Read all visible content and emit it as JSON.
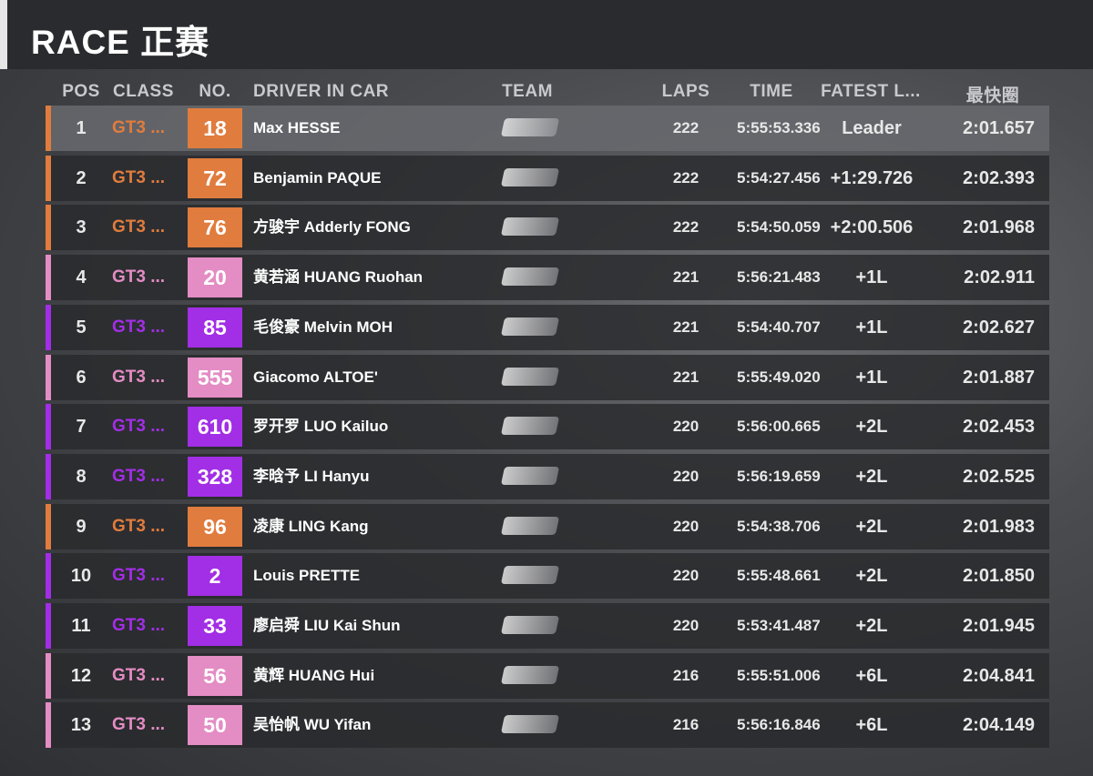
{
  "header": {
    "title": "RACE 正赛"
  },
  "table": {
    "columns": [
      "POS",
      "CLASS",
      "NO.",
      "DRIVER IN CAR",
      "TEAM",
      "LAPS",
      "TIME",
      "FATEST L...",
      "最快圈"
    ],
    "rows": [
      {
        "pos": "1",
        "class": "GT3 ...",
        "no": "18",
        "driver": "Max HESSE",
        "laps": "222",
        "time": "5:55:53.336",
        "gap": "Leader",
        "best": "2:01.657",
        "color": "#e07c3e"
      },
      {
        "pos": "2",
        "class": "GT3 ...",
        "no": "72",
        "driver": "Benjamin PAQUE",
        "laps": "222",
        "time": "5:54:27.456",
        "gap": "+1:29.726",
        "best": "2:02.393",
        "color": "#e07c3e"
      },
      {
        "pos": "3",
        "class": "GT3 ...",
        "no": "76",
        "driver": "方骏宇 Adderly FONG",
        "laps": "222",
        "time": "5:54:50.059",
        "gap": "+2:00.506",
        "best": "2:01.968",
        "color": "#e07c3e"
      },
      {
        "pos": "4",
        "class": "GT3 ...",
        "no": "20",
        "driver": "黄若涵 HUANG Ruohan",
        "laps": "221",
        "time": "5:56:21.483",
        "gap": "+1L",
        "best": "2:02.911",
        "color": "#e48cc4"
      },
      {
        "pos": "5",
        "class": "GT3 ...",
        "no": "85",
        "driver": "毛俊豪 Melvin MOH",
        "laps": "221",
        "time": "5:54:40.707",
        "gap": "+1L",
        "best": "2:02.627",
        "color": "#a22ee6"
      },
      {
        "pos": "6",
        "class": "GT3 ...",
        "no": "555",
        "driver": "Giacomo ALTOE'",
        "laps": "221",
        "time": "5:55:49.020",
        "gap": "+1L",
        "best": "2:01.887",
        "color": "#e48cc4"
      },
      {
        "pos": "7",
        "class": "GT3 ...",
        "no": "610",
        "driver": "罗开罗 LUO Kailuo",
        "laps": "220",
        "time": "5:56:00.665",
        "gap": "+2L",
        "best": "2:02.453",
        "color": "#a22ee6"
      },
      {
        "pos": "8",
        "class": "GT3 ...",
        "no": "328",
        "driver": "李晗予 LI Hanyu",
        "laps": "220",
        "time": "5:56:19.659",
        "gap": "+2L",
        "best": "2:02.525",
        "color": "#a22ee6"
      },
      {
        "pos": "9",
        "class": "GT3 ...",
        "no": "96",
        "driver": "凌康 LING Kang",
        "laps": "220",
        "time": "5:54:38.706",
        "gap": "+2L",
        "best": "2:01.983",
        "color": "#e07c3e"
      },
      {
        "pos": "10",
        "class": "GT3 ...",
        "no": "2",
        "driver": "Louis PRETTE",
        "laps": "220",
        "time": "5:55:48.661",
        "gap": "+2L",
        "best": "2:01.850",
        "color": "#a22ee6"
      },
      {
        "pos": "11",
        "class": "GT3 ...",
        "no": "33",
        "driver": "廖启舜 LIU Kai Shun",
        "laps": "220",
        "time": "5:53:41.487",
        "gap": "+2L",
        "best": "2:01.945",
        "color": "#a22ee6"
      },
      {
        "pos": "12",
        "class": "GT3 ...",
        "no": "56",
        "driver": "黄辉 HUANG Hui",
        "laps": "216",
        "time": "5:55:51.006",
        "gap": "+6L",
        "best": "2:04.841",
        "color": "#e48cc4"
      },
      {
        "pos": "13",
        "class": "GT3 ...",
        "no": "50",
        "driver": "吴怡帆 WU Yifan",
        "laps": "216",
        "time": "5:56:16.846",
        "gap": "+6L",
        "best": "2:04.149",
        "color": "#e48cc4"
      }
    ]
  }
}
